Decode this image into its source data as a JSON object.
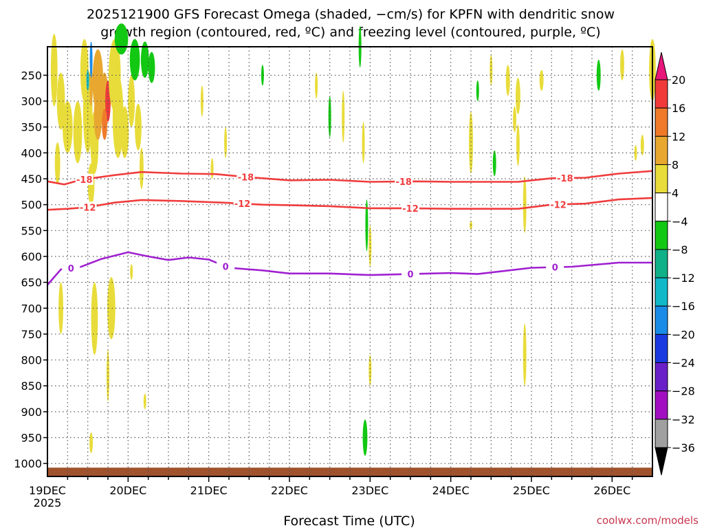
{
  "chart_data": {
    "type": "heatmap",
    "title_line1": "2025121900 GFS Forecast Omega (shaded, −cm/s) for KPFN with dendritic snow",
    "title_line2": "growth region (contoured, red, ºC) and freezing level (contoured, purple, ºC)",
    "xlabel": "Forecast Time (UTC)",
    "credit": "coolwx.com/models",
    "x_range_hours": [
      0,
      180
    ],
    "x_ticks": [
      {
        "label": "19DEC",
        "hours": 0
      },
      {
        "label": "20DEC",
        "hours": 24
      },
      {
        "label": "21DEC",
        "hours": 48
      },
      {
        "label": "22DEC",
        "hours": 72
      },
      {
        "label": "23DEC",
        "hours": 96
      },
      {
        "label": "24DEC",
        "hours": 120
      },
      {
        "label": "25DEC",
        "hours": 144
      },
      {
        "label": "26DEC",
        "hours": 168
      }
    ],
    "x_year_label": "2025",
    "y_range_hpa": [
      195,
      1025
    ],
    "y_ticks": [
      250,
      300,
      350,
      400,
      450,
      500,
      550,
      600,
      650,
      700,
      750,
      800,
      850,
      900,
      950,
      1000
    ],
    "colorbar": {
      "labels": [
        "20",
        "16",
        "12",
        "8",
        "4",
        "−4",
        "−8",
        "−12",
        "−16",
        "−20",
        "−24",
        "−28",
        "−32",
        "−36"
      ],
      "colors": [
        "#e8167a",
        "#f03a3a",
        "#f07a2a",
        "#e8a830",
        "#e8dc3a",
        "#ffffff",
        "#12c812",
        "#10b088",
        "#10b8c8",
        "#1a8ce8",
        "#1a3ae0",
        "#6a20c8",
        "#a010c0",
        "#a0a0a0",
        "#000000"
      ]
    },
    "contours": [
      {
        "name": "dgz-minus18",
        "label": "-18",
        "color": "#f03c3c",
        "points": [
          [
            0,
            455
          ],
          [
            5,
            461
          ],
          [
            10,
            452
          ],
          [
            20,
            443
          ],
          [
            28,
            437
          ],
          [
            40,
            440
          ],
          [
            50,
            441
          ],
          [
            60,
            447
          ],
          [
            72,
            453
          ],
          [
            84,
            452
          ],
          [
            96,
            456
          ],
          [
            110,
            455
          ],
          [
            120,
            456
          ],
          [
            140,
            456
          ],
          [
            150,
            449
          ],
          [
            160,
            448
          ],
          [
            170,
            440
          ],
          [
            180,
            435
          ]
        ],
        "label_hours": [
          11,
          59,
          106,
          154
        ]
      },
      {
        "name": "dgz-minus12",
        "label": "-12",
        "color": "#f03c3c",
        "points": [
          [
            0,
            510
          ],
          [
            6,
            508
          ],
          [
            12,
            505
          ],
          [
            20,
            496
          ],
          [
            28,
            491
          ],
          [
            40,
            493
          ],
          [
            52,
            496
          ],
          [
            64,
            500
          ],
          [
            72,
            501
          ],
          [
            84,
            503
          ],
          [
            96,
            507
          ],
          [
            108,
            507
          ],
          [
            120,
            508
          ],
          [
            140,
            508
          ],
          [
            150,
            500
          ],
          [
            160,
            498
          ],
          [
            170,
            490
          ],
          [
            180,
            487
          ]
        ],
        "label_hours": [
          12,
          58,
          108,
          152
        ]
      },
      {
        "name": "freezing-level",
        "label": "0",
        "color": "#a020d0",
        "points": [
          [
            0,
            655
          ],
          [
            4,
            625
          ],
          [
            10,
            620
          ],
          [
            16,
            605
          ],
          [
            24,
            592
          ],
          [
            30,
            600
          ],
          [
            36,
            607
          ],
          [
            42,
            602
          ],
          [
            48,
            606
          ],
          [
            54,
            622
          ],
          [
            64,
            627
          ],
          [
            72,
            633
          ],
          [
            84,
            633
          ],
          [
            96,
            636
          ],
          [
            108,
            634
          ],
          [
            120,
            632
          ],
          [
            128,
            634
          ],
          [
            144,
            622
          ],
          [
            156,
            620
          ],
          [
            170,
            612
          ],
          [
            180,
            612
          ]
        ],
        "label_hours": [
          7,
          53,
          108,
          151
        ]
      }
    ],
    "shading_note": "Omega shading: weak positive (4–8) yellow patches scattered, stronger (8–16) orange/red cores near 19–20DEC 300–400 hPa, green (−4 to −8) small areas upper levels, brown ground strip below ~1010 hPa."
  }
}
